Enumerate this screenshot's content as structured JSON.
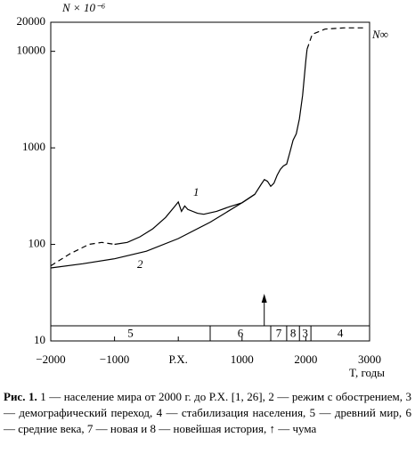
{
  "chart_data": {
    "type": "line",
    "ylabel": "N × 10⁻⁶",
    "xlabel": "T, годы",
    "log_y": true,
    "xlim": [
      -2000,
      3000
    ],
    "ylim": [
      10,
      20000
    ],
    "xticks": [
      {
        "value": -2000,
        "label": "−2000"
      },
      {
        "value": -1000,
        "label": "−1000"
      },
      {
        "value": 0,
        "label": "Р.Х."
      },
      1000,
      2000,
      3000
    ],
    "yticks": [
      10,
      100,
      1000,
      10000,
      20000
    ],
    "color": "#000000",
    "series": [
      {
        "name": "1",
        "dashed": false,
        "x": [
          -1000,
          -800,
          -600,
          -400,
          -200,
          -50,
          0,
          50,
          100,
          150,
          300,
          400,
          600,
          800,
          1000,
          1200,
          1300,
          1350,
          1400,
          1450,
          1500,
          1550,
          1600,
          1650,
          1700,
          1750,
          1800,
          1850,
          1900,
          1950,
          2000,
          2020
        ],
        "values": [
          100,
          105,
          120,
          145,
          190,
          250,
          275,
          220,
          250,
          230,
          210,
          205,
          220,
          245,
          270,
          330,
          420,
          470,
          450,
          400,
          430,
          520,
          600,
          650,
          680,
          900,
          1200,
          1400,
          2000,
          3500,
          8000,
          10500
        ]
      },
      {
        "name": "2",
        "dashed": false,
        "x": [
          -2000,
          -1500,
          -1000,
          -500,
          0,
          500,
          1000,
          1200
        ],
        "values": [
          57,
          63,
          71,
          85,
          115,
          170,
          270,
          330
        ]
      },
      {
        "dashed": true,
        "x": [
          -2000,
          -1700,
          -1400,
          -1200,
          -1000
        ],
        "values": [
          60,
          80,
          100,
          105,
          100
        ]
      },
      {
        "name": "N∞",
        "dashed": true,
        "x": [
          2020,
          2100,
          2300,
          2600,
          2900
        ],
        "values": [
          10500,
          15000,
          17000,
          17500,
          17500
        ]
      }
    ],
    "periods": [
      {
        "label": "5",
        "from": -2000,
        "to": 500
      },
      {
        "label": "6",
        "from": 500,
        "to": 1450
      },
      {
        "label": "7",
        "from": 1450,
        "to": 1700
      },
      {
        "label": "8",
        "from": 1700,
        "to": 1900
      },
      {
        "label": "3",
        "from": 1900,
        "to": 2080
      },
      {
        "label": "4",
        "from": 2080,
        "to": 3000
      }
    ],
    "plague_x": 1348
  },
  "caption": {
    "label": "Рис. 1.",
    "text": "1 — население мира от 2000 г. до Р.Х. [1, 26], 2 — режим с обострением, 3 — демографический переход, 4 — стабилизация населения, 5 — древний мир, 6 — средние века, 7 — новая и 8 — новейшая история, ↑ — чума"
  }
}
